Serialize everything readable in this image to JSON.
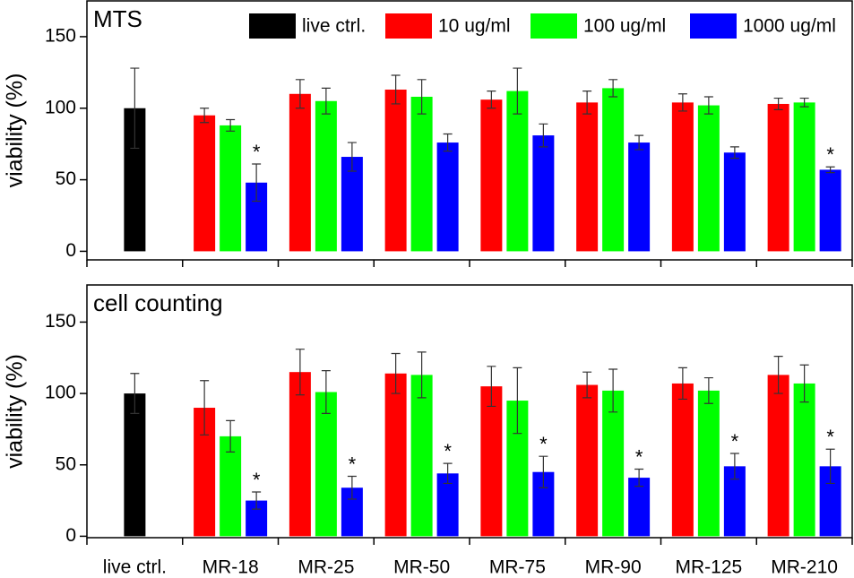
{
  "chart_data": [
    {
      "type": "bar",
      "title": "MTS",
      "y_label": "viability (%)",
      "ylim": [
        -6,
        175
      ],
      "yticks": [
        0,
        50,
        100,
        150
      ],
      "legend": "top-right",
      "series": [
        {
          "name": "live ctrl.",
          "color": "#000000",
          "values": [
            100,
            null,
            null,
            null,
            null,
            null,
            null,
            null
          ],
          "errors": [
            28,
            null,
            null,
            null,
            null,
            null,
            null,
            null
          ]
        },
        {
          "name": "10 ug/ml",
          "color": "#ff0000",
          "values": [
            null,
            95,
            110,
            113,
            106,
            104,
            104,
            103
          ],
          "errors": [
            null,
            5,
            10,
            10,
            6,
            8,
            6,
            4
          ]
        },
        {
          "name": "100 ug/ml",
          "color": "#00ff00",
          "values": [
            null,
            88,
            105,
            108,
            112,
            114,
            102,
            104
          ],
          "errors": [
            null,
            4,
            9,
            12,
            16,
            6,
            6,
            3
          ]
        },
        {
          "name": "1000 ug/ml",
          "color": "#0000ff",
          "values": [
            null,
            48,
            66,
            76,
            81,
            76,
            69,
            57
          ],
          "errors": [
            null,
            13,
            10,
            6,
            8,
            5,
            4,
            2
          ],
          "annotations": [
            null,
            "*",
            null,
            null,
            null,
            null,
            null,
            "*"
          ]
        }
      ]
    },
    {
      "type": "bar",
      "title": "cell counting",
      "y_label": "viability (%)",
      "categories": [
        "live ctrl.",
        "MR-18",
        "MR-25",
        "MR-50",
        "MR-75",
        "MR-90",
        "MR-125",
        "MR-210"
      ],
      "ylim": [
        -1,
        176
      ],
      "yticks": [
        0,
        50,
        100,
        150
      ],
      "series": [
        {
          "color": "#000000",
          "values": [
            100,
            null,
            null,
            null,
            null,
            null,
            null,
            null
          ],
          "errors": [
            14,
            null,
            null,
            null,
            null,
            null,
            null,
            null
          ]
        },
        {
          "color": "#ff0000",
          "values": [
            null,
            90,
            115,
            114,
            105,
            106,
            107,
            113
          ],
          "errors": [
            null,
            19,
            16,
            14,
            14,
            9,
            11,
            13
          ]
        },
        {
          "color": "#00ff00",
          "values": [
            null,
            70,
            101,
            113,
            95,
            102,
            102,
            107
          ],
          "errors": [
            null,
            11,
            15,
            16,
            23,
            15,
            9,
            13
          ]
        },
        {
          "color": "#0000ff",
          "values": [
            null,
            25,
            34,
            44,
            45,
            41,
            49,
            49
          ],
          "errors": [
            null,
            6,
            8,
            7,
            11,
            6,
            9,
            12
          ],
          "annotations": [
            null,
            "*",
            "*",
            "*",
            "*",
            "*",
            "*",
            "*"
          ]
        }
      ]
    }
  ]
}
